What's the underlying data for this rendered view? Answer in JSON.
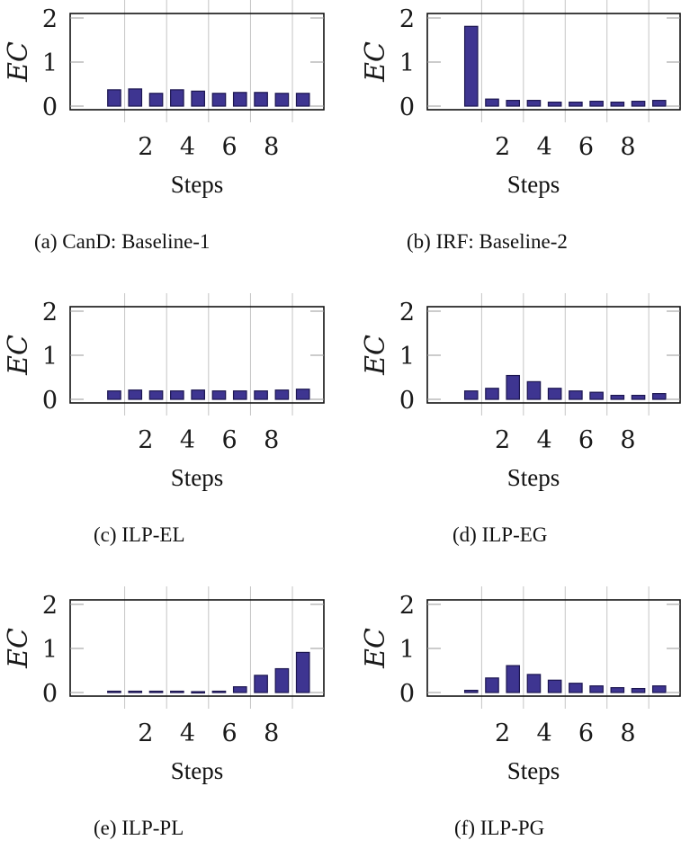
{
  "chart_data": [
    {
      "id": "a",
      "type": "bar",
      "title": "(a) CanD: Baseline-1",
      "xlabel": "Steps",
      "ylabel": "EC",
      "ylim": [
        0,
        2
      ],
      "yticks": [
        0,
        1,
        2
      ],
      "xticks": [
        2,
        4,
        6,
        8
      ],
      "categories": [
        1,
        2,
        3,
        4,
        5,
        6,
        7,
        8,
        9,
        10
      ],
      "values": [
        0.37,
        0.39,
        0.29,
        0.37,
        0.34,
        0.29,
        0.31,
        0.31,
        0.29,
        0.29
      ],
      "grid": "x"
    },
    {
      "id": "b",
      "type": "bar",
      "title": "(b) IRF: Baseline-2",
      "xlabel": "Steps",
      "ylabel": "EC",
      "ylim": [
        0,
        2
      ],
      "yticks": [
        0,
        1,
        2
      ],
      "xticks": [
        2,
        4,
        6,
        8
      ],
      "categories": [
        1,
        2,
        3,
        4,
        5,
        6,
        7,
        8,
        9,
        10
      ],
      "values": [
        1.81,
        0.16,
        0.13,
        0.13,
        0.09,
        0.09,
        0.11,
        0.09,
        0.11,
        0.13
      ],
      "grid": "x"
    },
    {
      "id": "c",
      "type": "bar",
      "title": "(c) ILP-EL",
      "xlabel": "Steps",
      "ylabel": "EC",
      "ylim": [
        0,
        2
      ],
      "yticks": [
        0,
        1,
        2
      ],
      "xticks": [
        2,
        4,
        6,
        8
      ],
      "categories": [
        1,
        2,
        3,
        4,
        5,
        6,
        7,
        8,
        9,
        10
      ],
      "values": [
        0.19,
        0.21,
        0.19,
        0.19,
        0.21,
        0.19,
        0.19,
        0.19,
        0.21,
        0.23
      ],
      "grid": "x"
    },
    {
      "id": "d",
      "type": "bar",
      "title": "(d) ILP-EG",
      "xlabel": "Steps",
      "ylabel": "EC",
      "ylim": [
        0,
        2
      ],
      "yticks": [
        0,
        1,
        2
      ],
      "xticks": [
        2,
        4,
        6,
        8
      ],
      "categories": [
        1,
        2,
        3,
        4,
        5,
        6,
        7,
        8,
        9,
        10
      ],
      "values": [
        0.19,
        0.25,
        0.54,
        0.4,
        0.25,
        0.19,
        0.16,
        0.09,
        0.09,
        0.13
      ],
      "grid": "x"
    },
    {
      "id": "e",
      "type": "bar",
      "title": "(e) ILP-PL",
      "xlabel": "Steps",
      "ylabel": "EC",
      "ylim": [
        0,
        2
      ],
      "yticks": [
        0,
        1,
        2
      ],
      "xticks": [
        2,
        4,
        6,
        8
      ],
      "categories": [
        1,
        2,
        3,
        4,
        5,
        6,
        7,
        8,
        9,
        10
      ],
      "values": [
        0.03,
        0.03,
        0.03,
        0.03,
        0.02,
        0.03,
        0.13,
        0.39,
        0.54,
        0.91
      ],
      "grid": "x"
    },
    {
      "id": "f",
      "type": "bar",
      "title": "(f) ILP-PG",
      "xlabel": "Steps",
      "ylabel": "EC",
      "ylim": [
        0,
        2
      ],
      "yticks": [
        0,
        1,
        2
      ],
      "xticks": [
        2,
        4,
        6,
        8
      ],
      "categories": [
        1,
        2,
        3,
        4,
        5,
        6,
        7,
        8,
        9,
        10
      ],
      "values": [
        0.05,
        0.33,
        0.61,
        0.41,
        0.28,
        0.21,
        0.15,
        0.11,
        0.09,
        0.15
      ],
      "grid": "x"
    }
  ],
  "colors": {
    "bar_fill": "#3e3591",
    "bar_edge": "#1c1650",
    "grid": "#c4c4c4",
    "axis": "#111111"
  },
  "panels": [
    {
      "xlabel": "Steps",
      "caption": "(a) CanD: Baseline-1"
    },
    {
      "xlabel": "Steps",
      "caption": "(b) IRF: Baseline-2"
    },
    {
      "xlabel": "Steps",
      "caption": "(c) ILP-EL"
    },
    {
      "xlabel": "Steps",
      "caption": "(d) ILP-EG"
    },
    {
      "xlabel": "Steps",
      "caption": "(e) ILP-PL"
    },
    {
      "xlabel": "Steps",
      "caption": "(f) ILP-PG"
    }
  ]
}
